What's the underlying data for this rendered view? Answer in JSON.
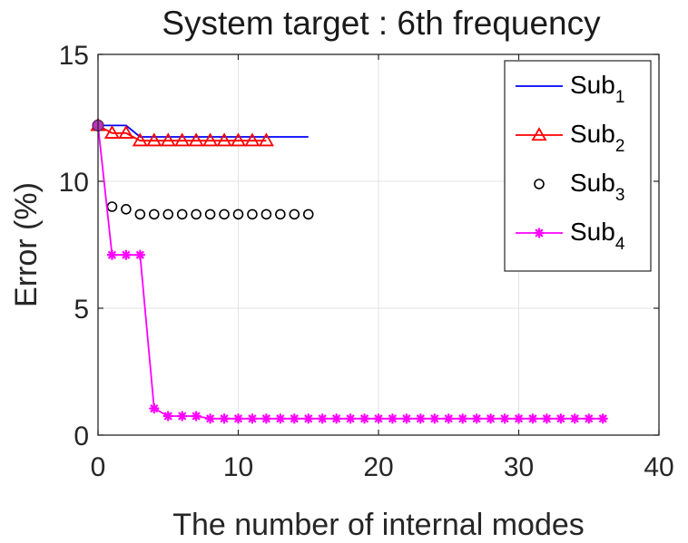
{
  "chart_data": {
    "type": "line",
    "title": "System target : 6th frequency",
    "xlabel": "The number of internal modes",
    "ylabel": "Error (%)",
    "xlim": [
      0,
      40
    ],
    "ylim": [
      0,
      15
    ],
    "x_ticks": [
      "0",
      "10",
      "20",
      "30",
      "40"
    ],
    "y_ticks": [
      "0",
      "5",
      "10",
      "15"
    ],
    "grid": true,
    "legend_position": "top-right",
    "series": [
      {
        "name": "Sub",
        "subscript": "1",
        "color": "#0000ff",
        "marker": "none",
        "x": [
          0,
          1,
          2,
          3,
          4,
          5,
          6,
          7,
          8,
          9,
          10,
          11,
          12,
          13,
          14,
          15
        ],
        "y": [
          12.2,
          12.2,
          12.2,
          11.75,
          11.75,
          11.75,
          11.75,
          11.75,
          11.75,
          11.75,
          11.75,
          11.75,
          11.75,
          11.75,
          11.75,
          11.75
        ]
      },
      {
        "name": "Sub",
        "subscript": "2",
        "color": "#ff0000",
        "marker": "triangle",
        "x": [
          0,
          1,
          2,
          3,
          4,
          5,
          6,
          7,
          8,
          9,
          10,
          11,
          12
        ],
        "y": [
          12.2,
          11.9,
          11.9,
          11.6,
          11.6,
          11.6,
          11.6,
          11.6,
          11.6,
          11.6,
          11.6,
          11.6,
          11.6
        ]
      },
      {
        "name": "Sub",
        "subscript": "3",
        "color": "#000000",
        "marker": "circle",
        "x": [
          0,
          1,
          2,
          3,
          4,
          5,
          6,
          7,
          8,
          9,
          10,
          11,
          12,
          13,
          14,
          15
        ],
        "y": [
          12.2,
          9.0,
          8.9,
          8.7,
          8.7,
          8.7,
          8.7,
          8.7,
          8.7,
          8.7,
          8.7,
          8.7,
          8.7,
          8.7,
          8.7,
          8.7
        ]
      },
      {
        "name": "Sub",
        "subscript": "4",
        "color": "#ff00ff",
        "marker": "asterisk",
        "x": [
          0,
          1,
          2,
          3,
          4,
          5,
          6,
          7,
          8,
          9,
          10,
          11,
          12,
          13,
          14,
          15,
          16,
          17,
          18,
          19,
          20,
          21,
          22,
          23,
          24,
          25,
          26,
          27,
          28,
          29,
          30,
          31,
          32,
          33,
          34,
          35,
          36
        ],
        "y": [
          12.2,
          7.1,
          7.1,
          7.1,
          1.05,
          0.75,
          0.75,
          0.75,
          0.65,
          0.65,
          0.65,
          0.65,
          0.65,
          0.65,
          0.65,
          0.65,
          0.65,
          0.65,
          0.65,
          0.65,
          0.65,
          0.65,
          0.65,
          0.65,
          0.65,
          0.65,
          0.65,
          0.65,
          0.65,
          0.65,
          0.65,
          0.65,
          0.65,
          0.65,
          0.65,
          0.65,
          0.65
        ]
      }
    ]
  }
}
